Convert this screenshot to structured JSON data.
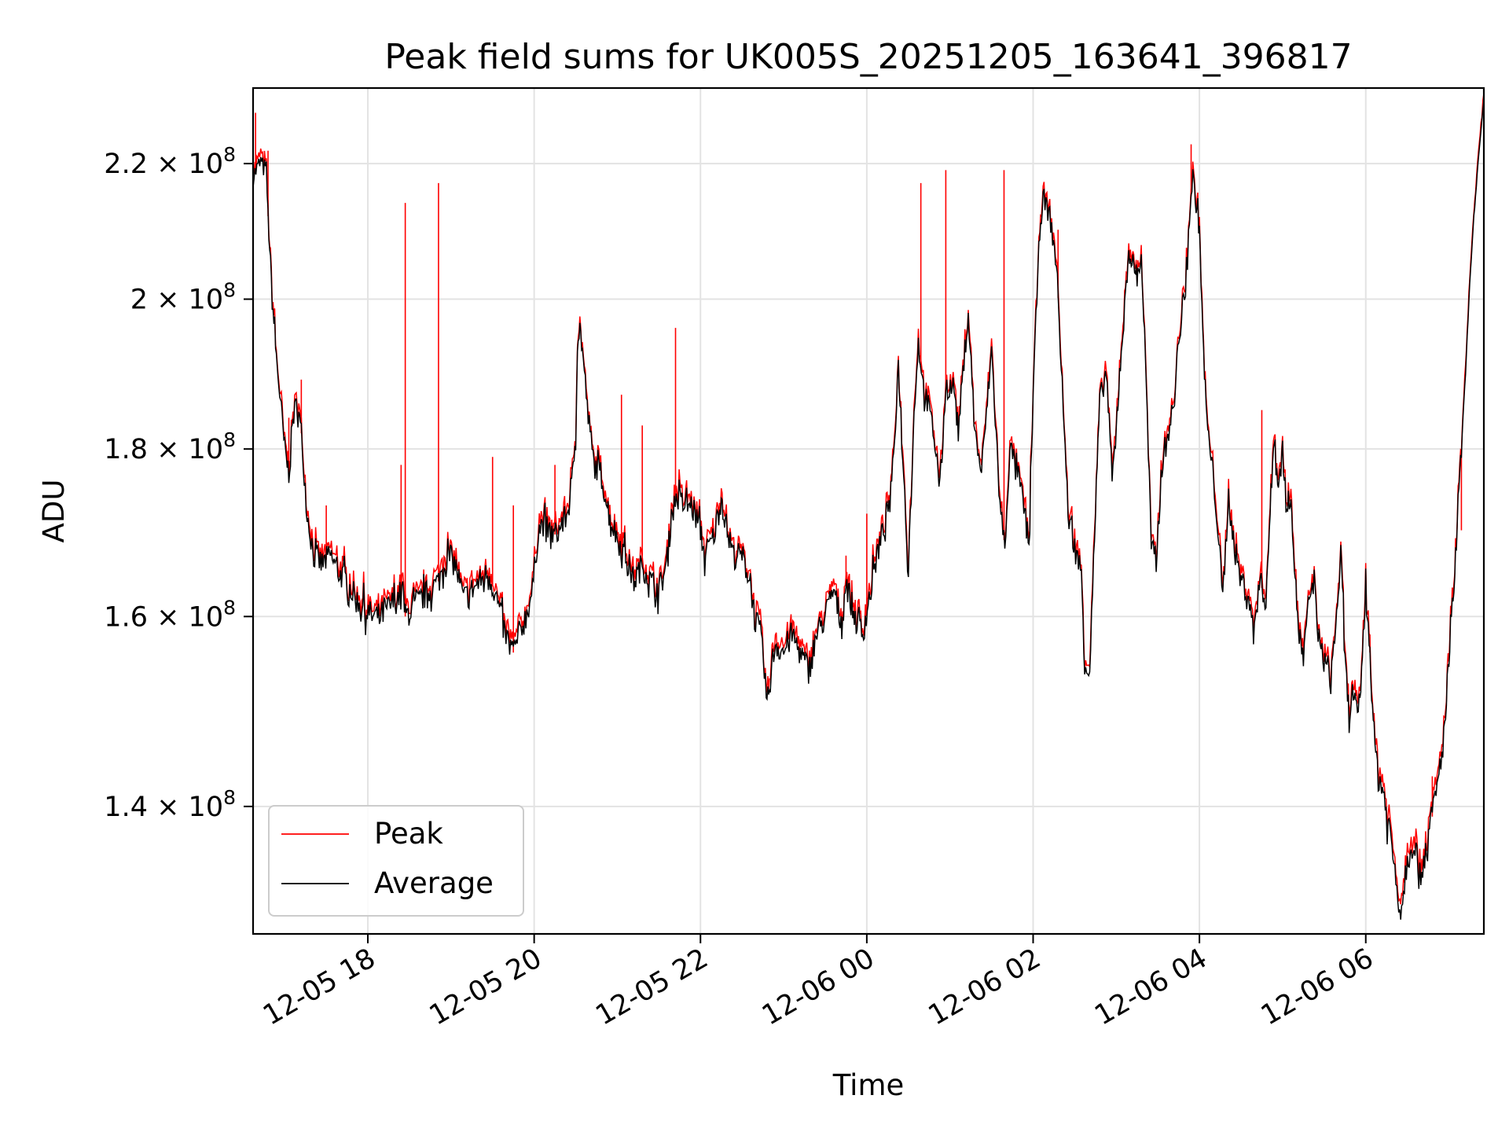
{
  "chart_data": {
    "type": "line",
    "title": "Peak field sums for UK005S_20251205_163641_396817",
    "xlabel": "Time",
    "ylabel": "ADU",
    "yscale": "log",
    "grid": true,
    "x_range_hours": [
      16.62,
      7.42
    ],
    "ylim": [
      128000000,
      232000000
    ],
    "x_ticks": [
      {
        "hour": 18,
        "label": "12-05 18"
      },
      {
        "hour": 20,
        "label": "12-05 20"
      },
      {
        "hour": 22,
        "label": "12-05 22"
      },
      {
        "hour": 24,
        "label": "12-06 00"
      },
      {
        "hour": 26,
        "label": "12-06 02"
      },
      {
        "hour": 28,
        "label": "12-06 04"
      },
      {
        "hour": 30,
        "label": "12-06 06"
      }
    ],
    "y_ticks": [
      {
        "value": 140000000,
        "mantissa": "1.4",
        "exp": "8"
      },
      {
        "value": 160000000,
        "mantissa": "1.6",
        "exp": "8"
      },
      {
        "value": 180000000,
        "mantissa": "1.8",
        "exp": "8"
      },
      {
        "value": 200000000,
        "mantissa": "2",
        "exp": "8"
      },
      {
        "value": 220000000,
        "mantissa": "2.2",
        "exp": "8"
      }
    ],
    "legend": {
      "position": "lower-left",
      "entries": [
        {
          "name": "Peak",
          "color": "#ff0000"
        },
        {
          "name": "Average",
          "color": "#000000"
        }
      ]
    },
    "series": [
      {
        "name": "Average",
        "color": "#000000",
        "points_hour_value_1e8": [
          [
            16.62,
            2.18
          ],
          [
            16.7,
            2.2
          ],
          [
            16.78,
            2.19
          ],
          [
            16.8,
            2.12
          ],
          [
            16.85,
            2.0
          ],
          [
            16.9,
            1.92
          ],
          [
            16.95,
            1.86
          ],
          [
            17.0,
            1.8
          ],
          [
            17.05,
            1.77
          ],
          [
            17.1,
            1.84
          ],
          [
            17.15,
            1.86
          ],
          [
            17.2,
            1.82
          ],
          [
            17.27,
            1.72
          ],
          [
            17.35,
            1.67
          ],
          [
            17.45,
            1.66
          ],
          [
            17.55,
            1.67
          ],
          [
            17.65,
            1.65
          ],
          [
            17.75,
            1.64
          ],
          [
            17.85,
            1.62
          ],
          [
            17.95,
            1.61
          ],
          [
            18.05,
            1.6
          ],
          [
            18.15,
            1.6
          ],
          [
            18.25,
            1.61
          ],
          [
            18.35,
            1.62
          ],
          [
            18.42,
            1.63
          ],
          [
            18.45,
            1.6
          ],
          [
            18.55,
            1.61
          ],
          [
            18.65,
            1.62
          ],
          [
            18.75,
            1.63
          ],
          [
            18.85,
            1.64
          ],
          [
            18.95,
            1.67
          ],
          [
            19.05,
            1.66
          ],
          [
            19.15,
            1.62
          ],
          [
            19.25,
            1.63
          ],
          [
            19.35,
            1.64
          ],
          [
            19.45,
            1.65
          ],
          [
            19.55,
            1.62
          ],
          [
            19.65,
            1.58
          ],
          [
            19.75,
            1.56
          ],
          [
            19.82,
            1.58
          ],
          [
            19.9,
            1.6
          ],
          [
            19.98,
            1.63
          ],
          [
            20.05,
            1.7
          ],
          [
            20.12,
            1.71
          ],
          [
            20.2,
            1.69
          ],
          [
            20.3,
            1.7
          ],
          [
            20.4,
            1.72
          ],
          [
            20.45,
            1.75
          ],
          [
            20.5,
            1.82
          ],
          [
            20.52,
            1.94
          ],
          [
            20.55,
            1.96
          ],
          [
            20.58,
            1.93
          ],
          [
            20.65,
            1.84
          ],
          [
            20.72,
            1.78
          ],
          [
            20.8,
            1.77
          ],
          [
            20.9,
            1.72
          ],
          [
            21.0,
            1.69
          ],
          [
            21.1,
            1.67
          ],
          [
            21.2,
            1.64
          ],
          [
            21.3,
            1.66
          ],
          [
            21.4,
            1.64
          ],
          [
            21.5,
            1.63
          ],
          [
            21.6,
            1.66
          ],
          [
            21.65,
            1.72
          ],
          [
            21.72,
            1.74
          ],
          [
            21.8,
            1.73
          ],
          [
            21.9,
            1.73
          ],
          [
            22.0,
            1.7
          ],
          [
            22.05,
            1.67
          ],
          [
            22.15,
            1.69
          ],
          [
            22.2,
            1.71
          ],
          [
            22.25,
            1.74
          ],
          [
            22.3,
            1.71
          ],
          [
            22.4,
            1.67
          ],
          [
            22.5,
            1.67
          ],
          [
            22.6,
            1.64
          ],
          [
            22.65,
            1.6
          ],
          [
            22.72,
            1.58
          ],
          [
            22.78,
            1.53
          ],
          [
            22.8,
            1.5
          ],
          [
            22.85,
            1.54
          ],
          [
            22.9,
            1.57
          ],
          [
            23.0,
            1.56
          ],
          [
            23.1,
            1.58
          ],
          [
            23.2,
            1.56
          ],
          [
            23.3,
            1.54
          ],
          [
            23.4,
            1.58
          ],
          [
            23.5,
            1.6
          ],
          [
            23.6,
            1.63
          ],
          [
            23.7,
            1.59
          ],
          [
            23.75,
            1.64
          ],
          [
            23.8,
            1.62
          ],
          [
            23.85,
            1.6
          ],
          [
            23.95,
            1.58
          ],
          [
            24.05,
            1.63
          ],
          [
            24.12,
            1.67
          ],
          [
            24.2,
            1.7
          ],
          [
            24.3,
            1.75
          ],
          [
            24.38,
            1.91
          ],
          [
            24.42,
            1.82
          ],
          [
            24.48,
            1.69
          ],
          [
            24.5,
            1.66
          ],
          [
            24.58,
            1.87
          ],
          [
            24.62,
            1.94
          ],
          [
            24.68,
            1.88
          ],
          [
            24.75,
            1.85
          ],
          [
            24.82,
            1.81
          ],
          [
            24.88,
            1.75
          ],
          [
            24.95,
            1.88
          ],
          [
            25.05,
            1.88
          ],
          [
            25.1,
            1.82
          ],
          [
            25.18,
            1.93
          ],
          [
            25.22,
            1.98
          ],
          [
            25.3,
            1.82
          ],
          [
            25.38,
            1.77
          ],
          [
            25.45,
            1.86
          ],
          [
            25.5,
            1.93
          ],
          [
            25.6,
            1.73
          ],
          [
            25.66,
            1.68
          ],
          [
            25.72,
            1.8
          ],
          [
            25.8,
            1.78
          ],
          [
            25.9,
            1.72
          ],
          [
            25.95,
            1.68
          ],
          [
            26.0,
            1.87
          ],
          [
            26.08,
            2.1
          ],
          [
            26.12,
            2.15
          ],
          [
            26.2,
            2.12
          ],
          [
            26.28,
            2.05
          ],
          [
            26.35,
            1.88
          ],
          [
            26.42,
            1.72
          ],
          [
            26.5,
            1.68
          ],
          [
            26.58,
            1.65
          ],
          [
            26.62,
            1.55
          ],
          [
            26.68,
            1.54
          ],
          [
            26.75,
            1.72
          ],
          [
            26.8,
            1.86
          ],
          [
            26.88,
            1.9
          ],
          [
            26.95,
            1.76
          ],
          [
            27.0,
            1.82
          ],
          [
            27.05,
            1.92
          ],
          [
            27.1,
            1.98
          ],
          [
            27.15,
            2.07
          ],
          [
            27.2,
            2.05
          ],
          [
            27.25,
            2.03
          ],
          [
            27.3,
            2.06
          ],
          [
            27.35,
            1.92
          ],
          [
            27.42,
            1.68
          ],
          [
            27.48,
            1.66
          ],
          [
            27.55,
            1.78
          ],
          [
            27.62,
            1.82
          ],
          [
            27.7,
            1.86
          ],
          [
            27.75,
            1.95
          ],
          [
            27.82,
            1.99
          ],
          [
            27.88,
            2.12
          ],
          [
            27.92,
            2.18
          ],
          [
            27.96,
            2.14
          ],
          [
            28.0,
            2.1
          ],
          [
            28.05,
            1.92
          ],
          [
            28.1,
            1.82
          ],
          [
            28.15,
            1.78
          ],
          [
            28.2,
            1.73
          ],
          [
            28.28,
            1.62
          ],
          [
            28.35,
            1.74
          ],
          [
            28.42,
            1.68
          ],
          [
            28.5,
            1.64
          ],
          [
            28.58,
            1.63
          ],
          [
            28.65,
            1.58
          ],
          [
            28.72,
            1.64
          ],
          [
            28.8,
            1.62
          ],
          [
            28.85,
            1.72
          ],
          [
            28.9,
            1.82
          ],
          [
            28.95,
            1.75
          ],
          [
            29.0,
            1.8
          ],
          [
            29.05,
            1.72
          ],
          [
            29.1,
            1.75
          ],
          [
            29.15,
            1.64
          ],
          [
            29.2,
            1.58
          ],
          [
            29.25,
            1.55
          ],
          [
            29.32,
            1.62
          ],
          [
            29.38,
            1.64
          ],
          [
            29.45,
            1.56
          ],
          [
            29.52,
            1.55
          ],
          [
            29.58,
            1.53
          ],
          [
            29.65,
            1.6
          ],
          [
            29.7,
            1.67
          ],
          [
            29.75,
            1.55
          ],
          [
            29.8,
            1.49
          ],
          [
            29.85,
            1.52
          ],
          [
            29.9,
            1.48
          ],
          [
            29.95,
            1.54
          ],
          [
            30.0,
            1.63
          ],
          [
            30.05,
            1.56
          ],
          [
            30.1,
            1.47
          ],
          [
            30.15,
            1.43
          ],
          [
            30.2,
            1.42
          ],
          [
            30.28,
            1.38
          ],
          [
            30.35,
            1.34
          ],
          [
            30.42,
            1.3
          ],
          [
            30.5,
            1.35
          ],
          [
            30.58,
            1.37
          ],
          [
            30.65,
            1.33
          ],
          [
            30.72,
            1.36
          ],
          [
            30.8,
            1.39
          ],
          [
            30.88,
            1.43
          ],
          [
            30.95,
            1.48
          ],
          [
            31.0,
            1.55
          ],
          [
            31.05,
            1.62
          ],
          [
            31.1,
            1.7
          ],
          [
            31.15,
            1.8
          ],
          [
            31.2,
            1.9
          ],
          [
            31.25,
            2.02
          ],
          [
            31.3,
            2.12
          ],
          [
            31.35,
            2.2
          ],
          [
            31.42,
            2.3
          ]
        ]
      },
      {
        "name": "Peak",
        "color": "#ff0000",
        "spikes_hour_value_1e8": [
          [
            16.65,
            2.28
          ],
          [
            16.8,
            2.22
          ],
          [
            17.05,
            1.84
          ],
          [
            17.2,
            1.89
          ],
          [
            17.5,
            1.73
          ],
          [
            18.4,
            1.78
          ],
          [
            18.45,
            2.14
          ],
          [
            18.85,
            2.17
          ],
          [
            19.5,
            1.79
          ],
          [
            19.75,
            1.73
          ],
          [
            20.25,
            1.78
          ],
          [
            21.05,
            1.87
          ],
          [
            21.3,
            1.83
          ],
          [
            21.7,
            1.96
          ],
          [
            23.75,
            1.67
          ],
          [
            24.0,
            1.72
          ],
          [
            24.65,
            2.17
          ],
          [
            24.95,
            2.19
          ],
          [
            25.65,
            2.19
          ],
          [
            26.3,
            2.1
          ],
          [
            27.9,
            2.23
          ],
          [
            28.75,
            1.85
          ],
          [
            29.0,
            1.81
          ],
          [
            30.05,
            1.58
          ],
          [
            30.8,
            1.43
          ],
          [
            31.15,
            1.7
          ]
        ]
      }
    ]
  }
}
